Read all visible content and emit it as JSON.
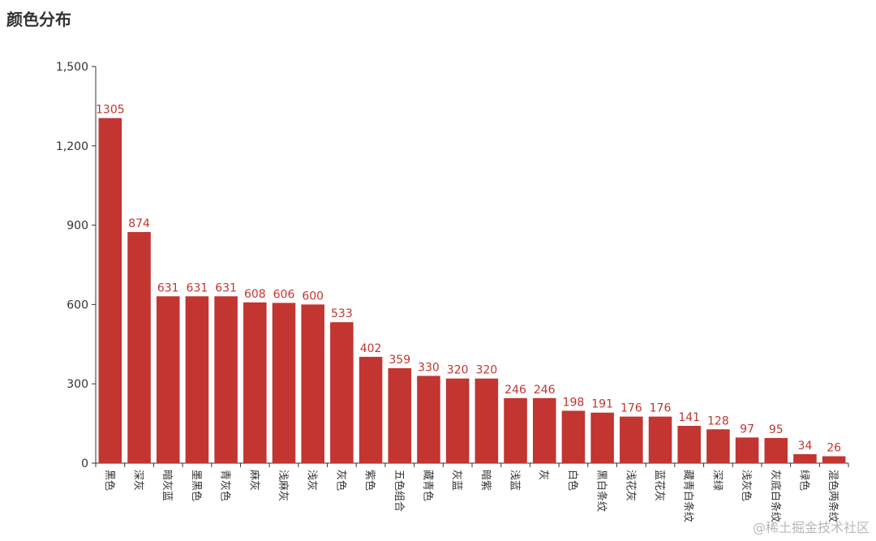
{
  "chart_data": {
    "type": "bar",
    "title": "颜色分布",
    "categories": [
      "黑色",
      "深灰",
      "暗灰蓝",
      "墨黑色",
      "青灰色",
      "麻灰",
      "浅麻灰",
      "浅灰",
      "灰色",
      "紫色",
      "五色组合",
      "藏青色",
      "灰蓝",
      "暗紫",
      "浅蓝",
      "灰",
      "白色",
      "黑白条纹",
      "浅花灰",
      "蓝花灰",
      "藏青白条纹",
      "深绿",
      "浅灰色",
      "灰底白条纹",
      "绿色",
      "混色两条纹"
    ],
    "values": [
      1305,
      874,
      631,
      631,
      631,
      608,
      606,
      600,
      533,
      402,
      359,
      330,
      320,
      320,
      246,
      246,
      198,
      191,
      176,
      176,
      141,
      128,
      97,
      95,
      34,
      26
    ],
    "ylim": [
      0,
      1500
    ],
    "yticks": [
      0,
      300,
      600,
      900,
      1200,
      1500
    ],
    "ytick_labels": [
      "0",
      "300",
      "600",
      "900",
      "1,200",
      "1,500"
    ],
    "bar_color": "#c23531",
    "label_color": "#c23531",
    "grid": false,
    "xlabel": "",
    "ylabel": ""
  },
  "watermark": "@稀土掘金技术社区"
}
